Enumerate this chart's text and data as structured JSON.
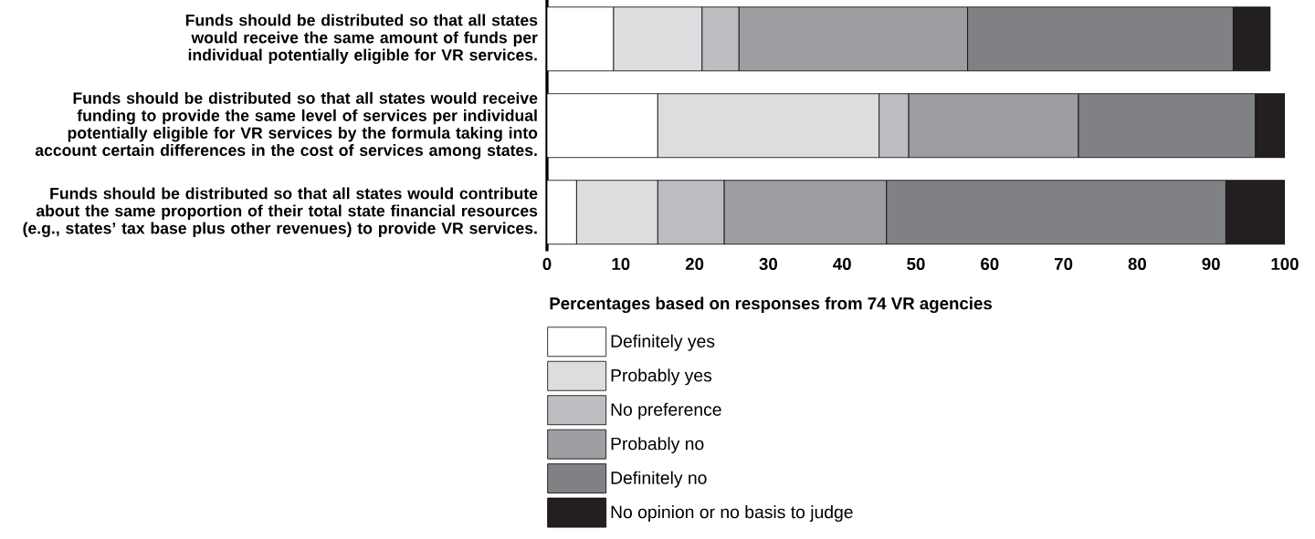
{
  "chart_data": {
    "type": "bar",
    "orientation": "horizontal",
    "stacked": true,
    "categories": [
      "Funds should be distributed so that all states would receive the same amount of funds per individual potentially eligible for VR services.",
      "Funds should be distributed so that all states would receive funding to provide the same level of services per individual potentially eligible for VR services by the formula taking into account certain differences in the cost of services among states.",
      "Funds should be distributed so that all states would contribute about the same proportion of their total state financial resources (e.g., states’ tax base plus other revenues) to provide VR services."
    ],
    "xlabel": "Percentages based on responses from 74 VR agencies",
    "xlim": [
      0,
      100
    ],
    "xticks": [
      0,
      10,
      20,
      30,
      40,
      50,
      60,
      70,
      80,
      90,
      100
    ],
    "legend": "bottom",
    "grid": false,
    "series": [
      {
        "name": "Definitely yes",
        "color": "#ffffff",
        "values": [
          9,
          15,
          4
        ]
      },
      {
        "name": "Probably yes",
        "color": "#dcdddf",
        "values": [
          12,
          30,
          11
        ]
      },
      {
        "name": "No preference",
        "color": "#bcbdc0",
        "values": [
          5,
          4,
          9
        ]
      },
      {
        "name": "Probably no",
        "color": "#9d9ea1",
        "values": [
          31,
          23,
          22
        ]
      },
      {
        "name": "Definitely no",
        "color": "#808184",
        "values": [
          36,
          24,
          46
        ]
      },
      {
        "name": "No opinion or no basis to judge",
        "color": "#231f20",
        "values": [
          5,
          4,
          8
        ]
      }
    ]
  }
}
